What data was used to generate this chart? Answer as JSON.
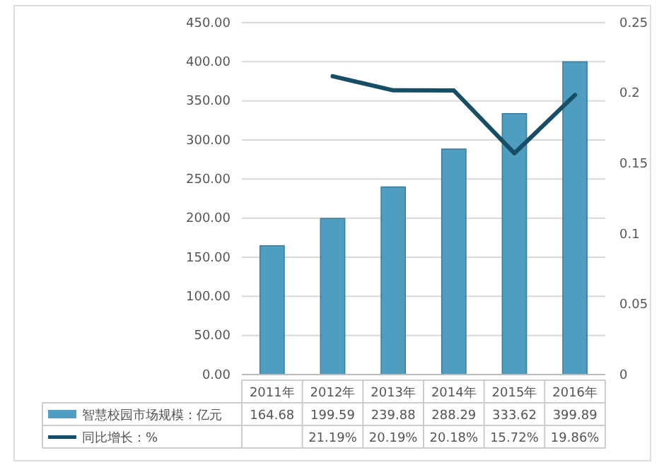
{
  "chart_data": {
    "type": "bar",
    "categories": [
      "2011年",
      "2012年",
      "2013年",
      "2014年",
      "2015年",
      "2016年"
    ],
    "series": [
      {
        "name": "智慧校园市场规模：亿元",
        "color": "#4f9dc0",
        "values": [
          164.68,
          199.59,
          239.88,
          288.29,
          333.62,
          399.89
        ],
        "value_labels": [
          "164.68",
          "199.59",
          "239.88",
          "288.29",
          "333.62",
          "399.89"
        ]
      },
      {
        "name": "同比增长：%",
        "type": "line",
        "axis": "y2",
        "color": "#174e66",
        "values": [
          null,
          0.2119,
          0.2019,
          0.2018,
          0.1572,
          0.1986
        ],
        "value_labels": [
          null,
          "21.19%",
          "20.19%",
          "20.18%",
          "15.72%",
          "19.86%"
        ]
      }
    ],
    "ylim": [
      0,
      450
    ],
    "yticks": [
      {
        "value": 0,
        "label": "0.00"
      },
      {
        "value": 50,
        "label": "50.00"
      },
      {
        "value": 100,
        "label": "100.00"
      },
      {
        "value": 150,
        "label": "150.00"
      },
      {
        "value": 200,
        "label": "200.00"
      },
      {
        "value": 250,
        "label": "250.00"
      },
      {
        "value": 300,
        "label": "300.00"
      },
      {
        "value": 350,
        "label": "350.00"
      },
      {
        "value": 400,
        "label": "400.00"
      },
      {
        "value": 450,
        "label": "450.00"
      }
    ],
    "y2lim": [
      0,
      0.25
    ],
    "y2ticks": [
      0,
      0.05,
      0.1,
      0.15,
      0.2,
      0.25
    ],
    "grid": "y",
    "legend": "bottom",
    "line_style": "solid",
    "marker": "none"
  }
}
